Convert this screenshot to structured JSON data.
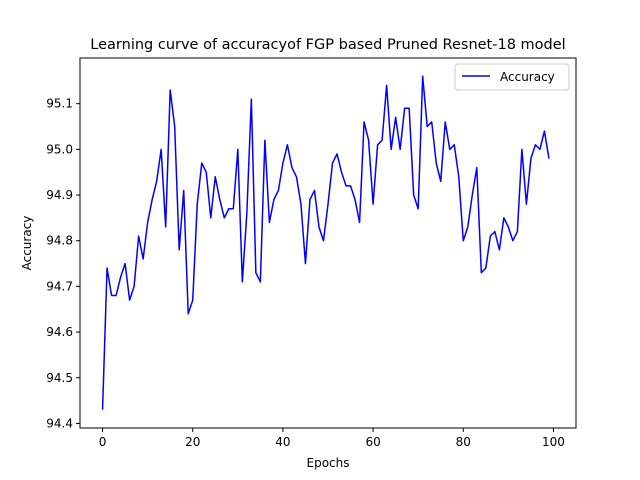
{
  "chart_data": {
    "type": "line",
    "title": "Learning curve of accuracyof FGP based Pruned Resnet-18 model",
    "xlabel": "Epochs",
    "ylabel": "Accuracy",
    "xlim": [
      -5,
      105
    ],
    "ylim": [
      94.39,
      95.2
    ],
    "xticks": [
      0,
      20,
      40,
      60,
      80,
      100
    ],
    "yticks": [
      94.4,
      94.5,
      94.6,
      94.7,
      94.8,
      94.9,
      95.0,
      95.1
    ],
    "ytick_labels": [
      "94.4",
      "94.5",
      "94.6",
      "94.7",
      "94.8",
      "94.9",
      "95.0",
      "95.1"
    ],
    "grid": false,
    "legend_position": "top-right",
    "series": [
      {
        "name": "Accuracy",
        "color": "#0000ff",
        "x": [
          0,
          1,
          2,
          3,
          4,
          5,
          6,
          7,
          8,
          9,
          10,
          11,
          12,
          13,
          14,
          15,
          16,
          17,
          18,
          19,
          20,
          21,
          22,
          23,
          24,
          25,
          26,
          27,
          28,
          29,
          30,
          31,
          32,
          33,
          34,
          35,
          36,
          37,
          38,
          39,
          40,
          41,
          42,
          43,
          44,
          45,
          46,
          47,
          48,
          49,
          50,
          51,
          52,
          53,
          54,
          55,
          56,
          57,
          58,
          59,
          60,
          61,
          62,
          63,
          64,
          65,
          66,
          67,
          68,
          69,
          70,
          71,
          72,
          73,
          74,
          75,
          76,
          77,
          78,
          79,
          80,
          81,
          82,
          83,
          84,
          85,
          86,
          87,
          88,
          89,
          90,
          91,
          92,
          93,
          94,
          95,
          96,
          97,
          98,
          99
        ],
        "y": [
          94.43,
          94.74,
          94.68,
          94.68,
          94.72,
          94.75,
          94.67,
          94.7,
          94.81,
          94.76,
          94.84,
          94.89,
          94.93,
          95.0,
          94.83,
          95.13,
          95.05,
          94.78,
          94.91,
          94.64,
          94.67,
          94.88,
          94.97,
          94.95,
          94.85,
          94.94,
          94.89,
          94.85,
          94.87,
          94.87,
          95.0,
          94.71,
          94.86,
          95.11,
          94.73,
          94.71,
          95.02,
          94.84,
          94.89,
          94.91,
          94.97,
          95.01,
          94.96,
          94.94,
          94.88,
          94.75,
          94.89,
          94.91,
          94.83,
          94.8,
          94.88,
          94.97,
          94.99,
          94.95,
          94.92,
          94.92,
          94.89,
          94.84,
          95.06,
          95.02,
          94.88,
          95.01,
          95.02,
          95.14,
          95.0,
          95.07,
          95.0,
          95.09,
          95.09,
          94.9,
          94.87,
          95.16,
          95.05,
          95.06,
          94.97,
          94.93,
          95.06,
          95.0,
          95.01,
          94.94,
          94.8,
          94.83,
          94.9,
          94.96,
          94.73,
          94.74,
          94.81,
          94.82,
          94.78,
          94.85,
          94.83,
          94.8,
          94.82,
          95.0,
          94.88,
          94.98,
          95.01,
          95.0,
          95.04,
          94.98
        ]
      }
    ]
  }
}
